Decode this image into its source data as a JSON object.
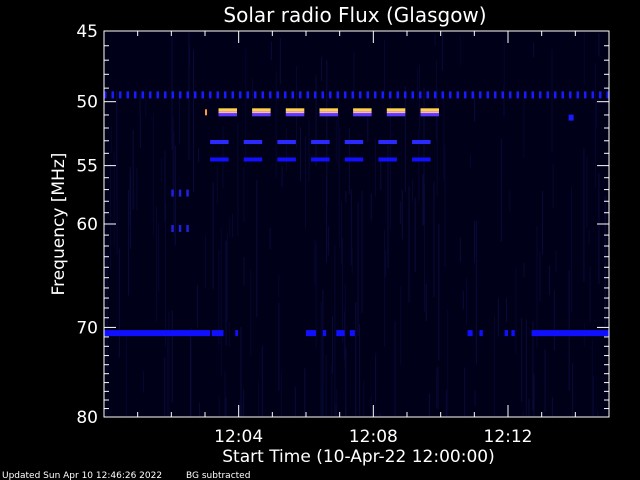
{
  "chart_data": {
    "type": "heatmap",
    "title": "Solar radio Flux (Glasgow)",
    "xlabel": "Start Time (10-Apr-22 12:00:00)",
    "ylabel": "Frequency [MHz]",
    "xlim_minutes": [
      0,
      15
    ],
    "ylim": [
      45,
      80
    ],
    "y_scale": "log",
    "x_ticks": [
      {
        "value": 4,
        "label": "12:04"
      },
      {
        "value": 8,
        "label": "12:08"
      },
      {
        "value": 12,
        "label": "12:12"
      }
    ],
    "y_ticks": [
      {
        "value": 45,
        "label": "45"
      },
      {
        "value": 50,
        "label": "50"
      },
      {
        "value": 55,
        "label": "55"
      },
      {
        "value": 60,
        "label": "60"
      },
      {
        "value": 70,
        "label": "70"
      },
      {
        "value": 80,
        "label": "80"
      }
    ],
    "background_color": "#000000",
    "plot_background_color": "#000018",
    "emissions": [
      {
        "freq": 49.5,
        "t_start": 0.0,
        "t_end": 15.0,
        "color": "#1a1aff",
        "pattern": "dashed"
      },
      {
        "freq": 50.8,
        "t_start": 3.25,
        "t_end": 10.0,
        "color": "#ffe066",
        "pattern": "pulses"
      },
      {
        "freq": 53.1,
        "t_start": 3.0,
        "t_end": 10.0,
        "color": "#2a2aff",
        "pattern": "pulses"
      },
      {
        "freq": 54.5,
        "t_start": 3.0,
        "t_end": 10.0,
        "color": "#1010ff",
        "pattern": "pulses"
      },
      {
        "freq": 57.3,
        "t_start": 2.0,
        "t_end": 2.6,
        "color": "#2020dd",
        "pattern": "dashed"
      },
      {
        "freq": 60.4,
        "t_start": 2.0,
        "t_end": 2.6,
        "color": "#2020dd",
        "pattern": "dashed"
      },
      {
        "freq": 70.6,
        "t_start": 0.0,
        "t_end": 15.0,
        "color": "#1010ff",
        "pattern": "intermittent"
      },
      {
        "freq": 51.2,
        "t_start": 13.8,
        "t_end": 13.95,
        "color": "#1a1aff",
        "pattern": "solid"
      }
    ],
    "grid": false
  },
  "footer": {
    "updated": "Updated Sun Apr 10 12:46:26 2022",
    "note": "BG subtracted"
  }
}
